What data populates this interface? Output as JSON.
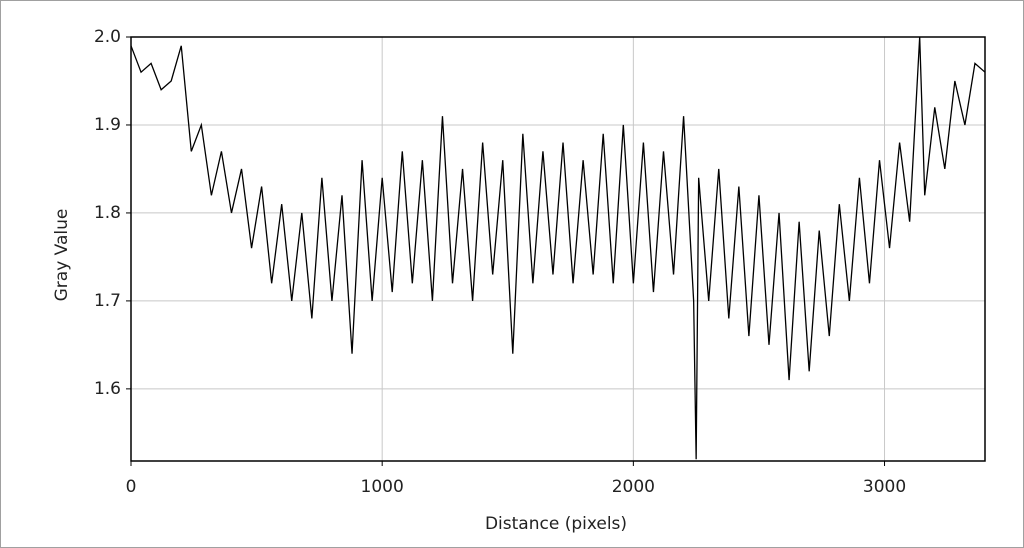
{
  "chart_data": {
    "type": "line",
    "x_label": "Distance (pixels)",
    "y_label": "Gray Value",
    "xlim": [
      0,
      3400
    ],
    "ylim": [
      1.518,
      2.0
    ],
    "xticks": [
      0,
      1000,
      2000,
      3000
    ],
    "yticks": [
      1.6,
      1.7,
      1.8,
      1.9,
      {
        "value": 2,
        "label": "2.0"
      }
    ],
    "grid": true,
    "series": [
      {
        "color": "#000000",
        "x": [
          0,
          40,
          80,
          120,
          160,
          200,
          240,
          280,
          320,
          360,
          400,
          440,
          480,
          520,
          560,
          600,
          640,
          680,
          720,
          760,
          800,
          840,
          880,
          920,
          960,
          1000,
          1040,
          1080,
          1120,
          1160,
          1200,
          1240,
          1280,
          1320,
          1360,
          1400,
          1440,
          1480,
          1520,
          1560,
          1600,
          1640,
          1680,
          1720,
          1760,
          1800,
          1840,
          1880,
          1920,
          1960,
          2000,
          2040,
          2080,
          2120,
          2160,
          2200,
          2240,
          2250,
          2260,
          2300,
          2340,
          2380,
          2420,
          2460,
          2500,
          2540,
          2580,
          2620,
          2660,
          2700,
          2740,
          2780,
          2820,
          2860,
          2900,
          2940,
          2980,
          3020,
          3060,
          3100,
          3140,
          3160,
          3200,
          3240,
          3280,
          3320,
          3360,
          3400
        ],
        "values": [
          1.99,
          1.96,
          1.97,
          1.94,
          1.95,
          1.99,
          1.87,
          1.9,
          1.82,
          1.87,
          1.8,
          1.85,
          1.76,
          1.83,
          1.72,
          1.81,
          1.7,
          1.8,
          1.68,
          1.84,
          1.7,
          1.82,
          1.64,
          1.86,
          1.7,
          1.84,
          1.71,
          1.87,
          1.72,
          1.86,
          1.7,
          1.91,
          1.72,
          1.85,
          1.7,
          1.88,
          1.73,
          1.86,
          1.64,
          1.89,
          1.72,
          1.87,
          1.73,
          1.88,
          1.72,
          1.86,
          1.73,
          1.89,
          1.72,
          1.9,
          1.72,
          1.88,
          1.71,
          1.87,
          1.73,
          1.91,
          1.7,
          1.52,
          1.84,
          1.7,
          1.85,
          1.68,
          1.83,
          1.66,
          1.82,
          1.65,
          1.8,
          1.61,
          1.79,
          1.62,
          1.78,
          1.66,
          1.81,
          1.7,
          1.84,
          1.72,
          1.86,
          1.76,
          1.88,
          1.79,
          2.0,
          1.82,
          1.92,
          1.85,
          1.95,
          1.9,
          1.97,
          1.96
        ]
      }
    ]
  }
}
